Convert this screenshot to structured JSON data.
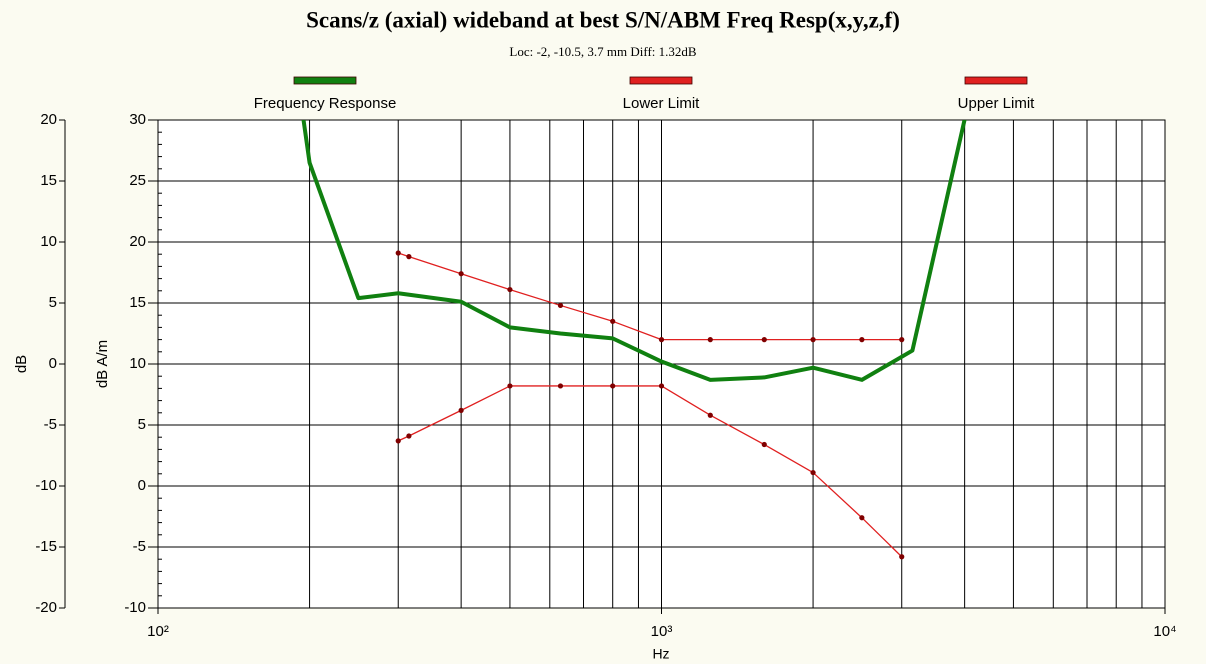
{
  "chart_data": {
    "type": "line",
    "title": "Scans/z (axial) wideband at best S/N/ABM Freq Resp(x,y,z,f)",
    "subtitle": "Loc: -2, -10.5, 3.7 mm Diff: 1.32dB",
    "xlabel": "Hz",
    "ylabel": "dB A/m",
    "y2label": "dB",
    "xscale": "log",
    "grid": true,
    "xlim": [
      100,
      10000
    ],
    "xticks": [
      {
        "value": 100,
        "label": "10²"
      },
      {
        "value": 1000,
        "label": "10³"
      },
      {
        "value": 10000,
        "label": "10⁴"
      }
    ],
    "ylim": [
      -10,
      30
    ],
    "yticks": [
      -10,
      -5,
      0,
      5,
      10,
      15,
      20,
      25,
      30
    ],
    "y2lim": [
      -20,
      20
    ],
    "y2ticks": [
      -20,
      -15,
      -10,
      -5,
      0,
      5,
      10,
      15,
      20
    ],
    "series": [
      {
        "name": "Frequency Response",
        "color": "#108010",
        "x": [
          190,
          200,
          250,
          300,
          400,
          500,
          630,
          800,
          1000,
          1250,
          1600,
          2000,
          2500,
          3150,
          4100
        ],
        "values": [
          33,
          26.5,
          15.4,
          15.8,
          15.1,
          13.0,
          12.5,
          12.1,
          10.2,
          8.7,
          8.9,
          9.7,
          8.7,
          11.1,
          32
        ]
      },
      {
        "name": "Lower Limit",
        "color": "#e02020",
        "x": [
          300,
          315,
          400,
          500,
          630,
          800,
          1000,
          1250,
          1600,
          2000,
          2500,
          3000
        ],
        "values": [
          3.7,
          4.1,
          6.2,
          8.2,
          8.2,
          8.2,
          8.2,
          5.8,
          3.4,
          1.1,
          -2.6,
          -5.8
        ]
      },
      {
        "name": "Upper Limit",
        "color": "#e02020",
        "x": [
          300,
          315,
          400,
          500,
          630,
          800,
          1000,
          1250,
          1600,
          2000,
          2500,
          3000
        ],
        "values": [
          19.1,
          18.8,
          17.4,
          16.1,
          14.8,
          13.5,
          12.0,
          12.0,
          12.0,
          12.0,
          12.0,
          12.0
        ]
      }
    ]
  }
}
